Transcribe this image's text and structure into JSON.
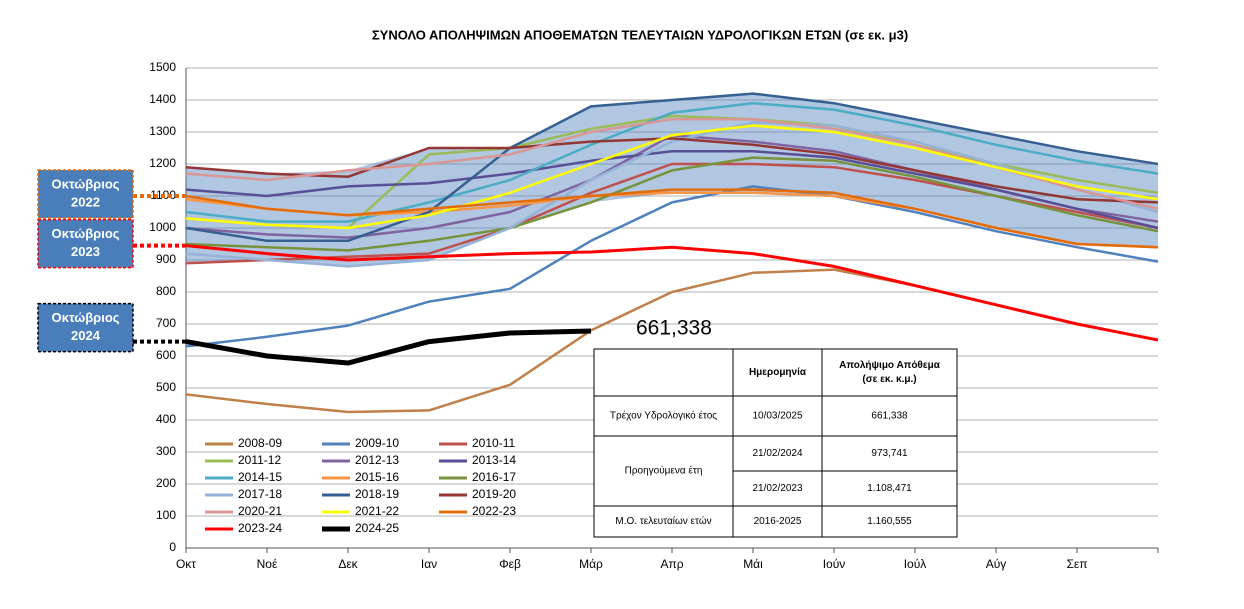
{
  "chart_data": {
    "type": "line",
    "title": "ΣΥΝΟΛΟ ΑΠΟΛΗΨΙΜΩΝ ΑΠΟΘΕΜΑΤΩΝ ΤΕΛΕΥΤΑΙΩΝ ΥΔΡΟΛΟΓΙΚΩΝ ΕΤΩΝ  (σε εκ. μ3)",
    "categories": [
      "Οκτ",
      "Νοέ",
      "Δεκ",
      "Ιαν",
      "Φεβ",
      "Μάρ",
      "Απρ",
      "Μάι",
      "Ιούν",
      "Ιούλ",
      "Αύγ",
      "Σεπ",
      null
    ],
    "ylim": [
      0,
      1500
    ],
    "yticks": [
      0,
      100,
      200,
      300,
      400,
      500,
      600,
      700,
      800,
      900,
      1000,
      1100,
      1200,
      1300,
      1400,
      1500
    ],
    "grid": true,
    "series": [
      {
        "name": "2008-09",
        "color": "#c0804a",
        "values": [
          480,
          450,
          425,
          430,
          510,
          680,
          800,
          860,
          870,
          820,
          760,
          700,
          650
        ]
      },
      {
        "name": "2009-10",
        "color": "#4f81bd",
        "values": [
          630,
          660,
          695,
          770,
          810,
          960,
          1080,
          1130,
          1100,
          1050,
          990,
          940,
          895
        ]
      },
      {
        "name": "2010-11",
        "color": "#c0504d",
        "values": [
          890,
          900,
          910,
          920,
          1000,
          1110,
          1200,
          1200,
          1190,
          1150,
          1100,
          1050,
          1000
        ]
      },
      {
        "name": "2011-12",
        "color": "#9bbb59",
        "values": [
          1030,
          1010,
          1000,
          1230,
          1250,
          1310,
          1350,
          1340,
          1320,
          1260,
          1200,
          1150,
          1110
        ]
      },
      {
        "name": "2012-13",
        "color": "#8064a2",
        "values": [
          1000,
          980,
          970,
          1000,
          1050,
          1150,
          1290,
          1270,
          1240,
          1180,
          1120,
          1060,
          1020
        ]
      },
      {
        "name": "2013-14",
        "color": "#5a4f96",
        "values": [
          1120,
          1100,
          1130,
          1140,
          1170,
          1210,
          1240,
          1240,
          1220,
          1170,
          1120,
          1060,
          1000
        ]
      },
      {
        "name": "2014-15",
        "color": "#4bacc6",
        "values": [
          1050,
          1020,
          1020,
          1080,
          1150,
          1260,
          1360,
          1390,
          1370,
          1320,
          1260,
          1210,
          1170
        ]
      },
      {
        "name": "2015-16",
        "color": "#f79646",
        "values": [
          1090,
          1060,
          1040,
          1050,
          1070,
          1100,
          1110,
          1110,
          1100,
          1060,
          1000,
          950,
          940
        ]
      },
      {
        "name": "2016-17",
        "color": "#77933c",
        "values": [
          950,
          940,
          930,
          960,
          1000,
          1080,
          1180,
          1220,
          1210,
          1160,
          1100,
          1040,
          990
        ]
      },
      {
        "name": "2017-18",
        "color": "#95b3d7",
        "values": [
          920,
          900,
          880,
          900,
          1000,
          1150,
          1270,
          1330,
          1320,
          1270,
          1200,
          1120,
          1050
        ]
      },
      {
        "name": "2018-19",
        "color": "#366092",
        "values": [
          1000,
          960,
          960,
          1050,
          1250,
          1380,
          1400,
          1420,
          1390,
          1340,
          1290,
          1240,
          1200
        ]
      },
      {
        "name": "2019-20",
        "color": "#943634",
        "values": [
          1190,
          1170,
          1160,
          1250,
          1250,
          1270,
          1280,
          1260,
          1230,
          1180,
          1130,
          1090,
          1080
        ]
      },
      {
        "name": "2020-21",
        "color": "#d99694",
        "values": [
          1170,
          1150,
          1180,
          1200,
          1230,
          1300,
          1340,
          1340,
          1310,
          1260,
          1190,
          1120,
          1060
        ]
      },
      {
        "name": "2021-22",
        "color": "#ffff00",
        "values": [
          1030,
          1010,
          1000,
          1040,
          1110,
          1200,
          1290,
          1320,
          1300,
          1250,
          1190,
          1130,
          1090
        ]
      },
      {
        "name": "2022-23",
        "color": "#e36c09",
        "values": [
          1100,
          1060,
          1040,
          1060,
          1080,
          1100,
          1120,
          1120,
          1110,
          1060,
          1000,
          950,
          940
        ]
      },
      {
        "name": "2023-24",
        "color": "#ff0000",
        "values": [
          945,
          920,
          900,
          910,
          920,
          925,
          940,
          920,
          880,
          820,
          760,
          700,
          650
        ]
      },
      {
        "name": "2024-25",
        "color": "#000000",
        "values": [
          645,
          600,
          578,
          645,
          672,
          678,
          null,
          null,
          null,
          null,
          null,
          null,
          null
        ]
      }
    ],
    "current_label": "661,338",
    "annotations": [
      {
        "text": [
          "Οκτώβριος",
          "2022"
        ],
        "value": 1100,
        "color": "#e36c09"
      },
      {
        "text": [
          "Οκτώβριος",
          "2023"
        ],
        "value": 945,
        "color": "#ff0000"
      },
      {
        "text": [
          "Οκτώβριος",
          "2024"
        ],
        "value": 645,
        "color": "#000000"
      }
    ]
  },
  "table": {
    "headers": [
      "Ημερομηνία",
      "Απολήψιμο Απόθεμα",
      "(σε εκ. κ.μ.)"
    ],
    "current": {
      "label": "Τρέχον Υδρολογικό έτος",
      "date": "10/03/2025",
      "value": "661,338"
    },
    "previous": {
      "label": "Προηγούμενα έτη",
      "rows": [
        [
          "21/02/2024",
          "973,741"
        ],
        [
          "21/02/2023",
          "1.108,471"
        ]
      ]
    },
    "average": {
      "label": "Μ.Ο. τελευταίων ετών",
      "date": "2016-2025",
      "value": "1.160,555"
    }
  }
}
